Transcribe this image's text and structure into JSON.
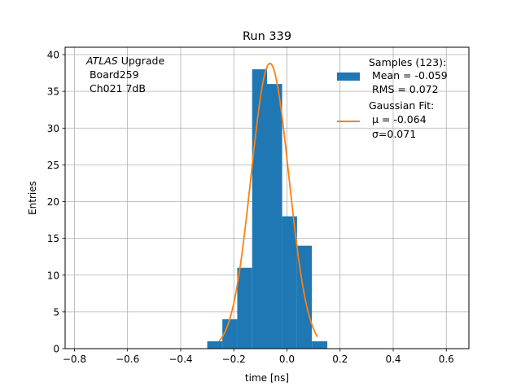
{
  "chart_data": {
    "type": "bar",
    "title": "Run 339",
    "xlabel": "time [ns]",
    "ylabel": "Entries",
    "xlim": [
      -0.835,
      0.685
    ],
    "ylim": [
      0,
      41
    ],
    "grid": true,
    "xticks": [
      {
        "value": -0.8,
        "label": "−0.8"
      },
      {
        "value": -0.6,
        "label": "−0.6"
      },
      {
        "value": -0.4,
        "label": "−0.4"
      },
      {
        "value": -0.2,
        "label": "−0.2"
      },
      {
        "value": 0.0,
        "label": "0.0"
      },
      {
        "value": 0.2,
        "label": "0.2"
      },
      {
        "value": 0.4,
        "label": "0.4"
      },
      {
        "value": 0.6,
        "label": "0.6"
      }
    ],
    "yticks": [
      {
        "value": 0,
        "label": "0"
      },
      {
        "value": 5,
        "label": "5"
      },
      {
        "value": 10,
        "label": "10"
      },
      {
        "value": 15,
        "label": "15"
      },
      {
        "value": 20,
        "label": "20"
      },
      {
        "value": 25,
        "label": "25"
      },
      {
        "value": 30,
        "label": "30"
      },
      {
        "value": 35,
        "label": "35"
      },
      {
        "value": 40,
        "label": "40"
      }
    ],
    "histogram": {
      "name": "Samples (123):",
      "color": "#1f77b4",
      "bin_edges": [
        -0.3,
        -0.243,
        -0.187,
        -0.131,
        -0.075,
        -0.018,
        0.038,
        0.094,
        0.152
      ],
      "counts": [
        1,
        4,
        11,
        38,
        36,
        18,
        14,
        1
      ]
    },
    "fit": {
      "name": "Gaussian Fit:",
      "color": "#ff7f0e",
      "mu": -0.064,
      "sigma": 0.071,
      "amplitude": 38.8,
      "x_range": [
        -0.255,
        0.115
      ]
    },
    "annotation": {
      "italic": "ATLAS",
      "line1_rest": " Upgrade",
      "line2": " Board259",
      "line3": " Ch021 7dB"
    },
    "legend": {
      "placement": "top-right",
      "hist_line1": "Samples (123):",
      "hist_line2": " Mean = -0.059",
      "hist_line3": " RMS = 0.072",
      "fit_line1": "Gaussian Fit:",
      "fit_mu": " μ = -0.064",
      "fit_sigma": " σ=0.071"
    }
  }
}
